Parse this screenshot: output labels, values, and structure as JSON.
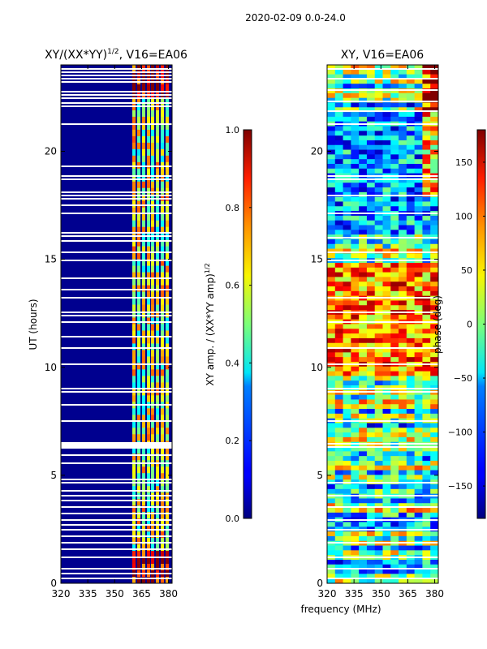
{
  "suptitle": "2020-02-09 0.0-24.0",
  "chart_data": [
    {
      "type": "heatmap",
      "title": "XY/(XX*YY)",
      "title_superscript": "1/2",
      "title_suffix": ", V16=EA06",
      "xlabel": "",
      "ylabel": "UT (hours)",
      "xlim": [
        320,
        382
      ],
      "ylim": [
        0,
        24
      ],
      "xticks": [
        "320",
        "335",
        "350",
        "365",
        "380"
      ],
      "yticks": [
        "0",
        "5",
        "10",
        "15",
        "20"
      ],
      "colorbar": {
        "label": "XY amp. / (XX*YY amp)",
        "label_superscript": "1/2",
        "range": [
          0.0,
          1.0
        ],
        "ticks": [
          "0.0",
          "0.2",
          "0.4",
          "0.6",
          "0.8",
          "1.0"
        ],
        "colormap": "jet"
      }
    },
    {
      "type": "heatmap",
      "title": "XY, V16=EA06",
      "xlabel": "frequency (MHz)",
      "ylabel": "",
      "xlim": [
        320,
        382
      ],
      "ylim": [
        0,
        24
      ],
      "xticks": [
        "320",
        "335",
        "350",
        "365",
        "380"
      ],
      "yticks": [
        "0",
        "5",
        "10",
        "15",
        "20"
      ],
      "colorbar": {
        "label": "phase (deg)",
        "range": [
          -180,
          180
        ],
        "ticks": [
          "-150",
          "-100",
          "-50",
          "0",
          "50",
          "100",
          "150"
        ],
        "colormap": "jet"
      }
    }
  ]
}
